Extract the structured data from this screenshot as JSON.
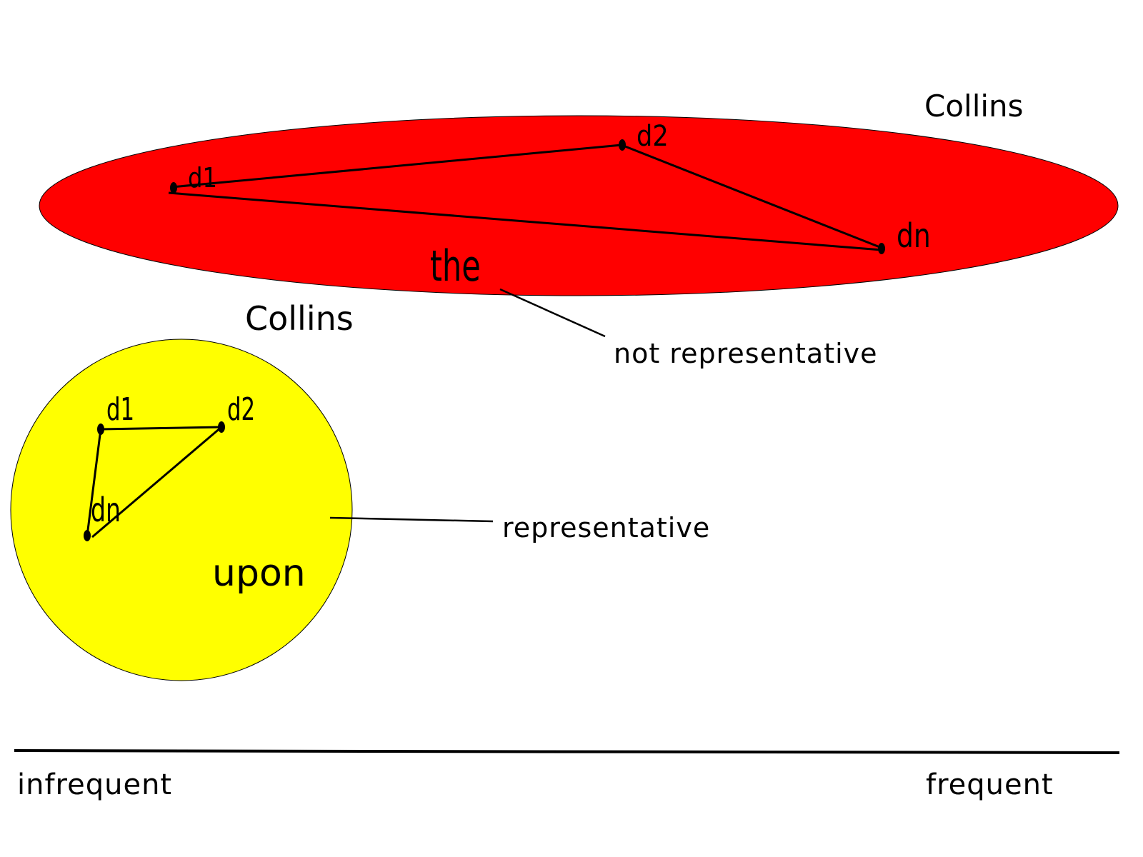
{
  "frequent_cluster": {
    "color": "#ff0000",
    "source_label": "Collins",
    "word": "the",
    "nodes": {
      "d1": "d1",
      "d2": "d2",
      "dn": "dn"
    },
    "annotation": "not representative"
  },
  "infrequent_cluster": {
    "color": "#ffff00",
    "source_label": "Collins",
    "word": "upon",
    "nodes": {
      "d1": "d1",
      "d2": "d2",
      "dn": "dn"
    },
    "annotation": "representative"
  },
  "axis": {
    "left_label": "infrequent",
    "right_label": "frequent"
  }
}
